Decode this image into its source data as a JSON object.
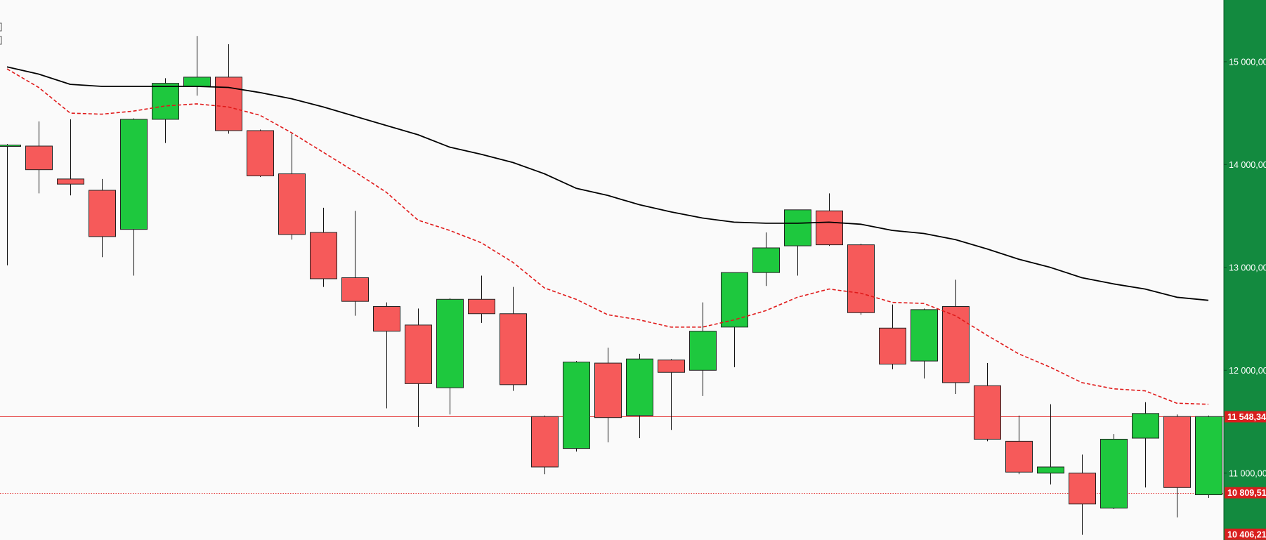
{
  "chart_data": {
    "type": "candlestick",
    "title": "",
    "xlabel": "",
    "ylabel": "",
    "ylim": [
      10350,
      15600
    ],
    "grid": false,
    "legend": "none",
    "colors": {
      "background": "#fafafa",
      "up": "#1ec83e",
      "down": "#f65a5a",
      "candle_outline": "#222222",
      "axis_panel": "#138a3f",
      "level_line": "#e22626",
      "level_tag": "#d91e1e",
      "sma_long": "#000000",
      "sma_short": "#e01a1a",
      "axis_text": "#ffffff"
    },
    "y_ticks": [
      {
        "value": 15000,
        "label": "15 000,00"
      },
      {
        "value": 14000,
        "label": "14 000,00"
      },
      {
        "value": 13000,
        "label": "13 000,00"
      },
      {
        "value": 12000,
        "label": "12 000,00"
      },
      {
        "value": 11000,
        "label": "11 000,00"
      }
    ],
    "price_tags": [
      {
        "value": 11548.34,
        "label": "11 548,34",
        "line": "solid"
      },
      {
        "value": 10809.51,
        "label": "10 809,51",
        "line": "dotted"
      },
      {
        "value": 10406.21,
        "label": "10 406,21",
        "line": "none"
      }
    ],
    "candles": [
      {
        "o": 14190,
        "h": 14200,
        "l": 13020,
        "c": 14190,
        "x0": true
      },
      {
        "o": 14180,
        "h": 14420,
        "l": 13720,
        "c": 13950
      },
      {
        "o": 13860,
        "h": 14440,
        "l": 13700,
        "c": 13810
      },
      {
        "o": 13750,
        "h": 13860,
        "l": 13100,
        "c": 13300
      },
      {
        "o": 13370,
        "h": 14450,
        "l": 12920,
        "c": 14440
      },
      {
        "o": 14440,
        "h": 14840,
        "l": 14210,
        "c": 14790
      },
      {
        "o": 14760,
        "h": 15250,
        "l": 14670,
        "c": 14850
      },
      {
        "o": 14850,
        "h": 15170,
        "l": 14300,
        "c": 14330
      },
      {
        "o": 14330,
        "h": 14340,
        "l": 13880,
        "c": 13890
      },
      {
        "o": 13910,
        "h": 14300,
        "l": 13270,
        "c": 13320
      },
      {
        "o": 13340,
        "h": 13580,
        "l": 12810,
        "c": 12890
      },
      {
        "o": 12900,
        "h": 13550,
        "l": 12530,
        "c": 12670
      },
      {
        "o": 12620,
        "h": 12660,
        "l": 11630,
        "c": 12380
      },
      {
        "o": 12440,
        "h": 12600,
        "l": 11450,
        "c": 11870
      },
      {
        "o": 11830,
        "h": 12700,
        "l": 11570,
        "c": 12690
      },
      {
        "o": 12690,
        "h": 12920,
        "l": 12460,
        "c": 12550
      },
      {
        "o": 12550,
        "h": 12810,
        "l": 11800,
        "c": 11860
      },
      {
        "o": 11550,
        "h": 11560,
        "l": 10990,
        "c": 11060
      },
      {
        "o": 11240,
        "h": 12090,
        "l": 11210,
        "c": 12080
      },
      {
        "o": 12070,
        "h": 12220,
        "l": 11300,
        "c": 11540
      },
      {
        "o": 11560,
        "h": 12160,
        "l": 11340,
        "c": 12110
      },
      {
        "o": 12100,
        "h": 12110,
        "l": 11420,
        "c": 11980
      },
      {
        "o": 12000,
        "h": 12660,
        "l": 11750,
        "c": 12380
      },
      {
        "o": 12420,
        "h": 12950,
        "l": 12030,
        "c": 12950
      },
      {
        "o": 12950,
        "h": 13340,
        "l": 12820,
        "c": 13190
      },
      {
        "o": 13210,
        "h": 13560,
        "l": 12920,
        "c": 13560
      },
      {
        "o": 13550,
        "h": 13720,
        "l": 13210,
        "c": 13220
      },
      {
        "o": 13220,
        "h": 13230,
        "l": 12540,
        "c": 12560
      },
      {
        "o": 12410,
        "h": 12640,
        "l": 12010,
        "c": 12060
      },
      {
        "o": 12090,
        "h": 12600,
        "l": 11920,
        "c": 12590
      },
      {
        "o": 12620,
        "h": 12880,
        "l": 11770,
        "c": 11880
      },
      {
        "o": 11850,
        "h": 12070,
        "l": 11310,
        "c": 11330
      },
      {
        "o": 11310,
        "h": 11560,
        "l": 10990,
        "c": 11010
      },
      {
        "o": 11000,
        "h": 11670,
        "l": 10890,
        "c": 11060
      },
      {
        "o": 11000,
        "h": 11180,
        "l": 10400,
        "c": 10700
      },
      {
        "o": 10660,
        "h": 11380,
        "l": 10650,
        "c": 11330
      },
      {
        "o": 11340,
        "h": 11690,
        "l": 10860,
        "c": 11580
      },
      {
        "o": 11550,
        "h": 11570,
        "l": 10570,
        "c": 10860
      },
      {
        "o": 10790,
        "h": 11560,
        "l": 10760,
        "c": 11550
      }
    ],
    "series": [
      {
        "style": "solid",
        "values": [
          14950,
          14880,
          14780,
          14760,
          14760,
          14760,
          14760,
          14750,
          14700,
          14640,
          14560,
          14470,
          14380,
          14290,
          14170,
          14100,
          14020,
          13910,
          13770,
          13700,
          13610,
          13540,
          13480,
          13440,
          13430,
          13430,
          13440,
          13420,
          13360,
          13330,
          13270,
          13180,
          13080,
          13000,
          12900,
          12840,
          12790,
          12710,
          12680
        ]
      },
      {
        "style": "dashed",
        "values": [
          14930,
          14750,
          14500,
          14490,
          14520,
          14570,
          14590,
          14560,
          14480,
          14310,
          14120,
          13930,
          13730,
          13460,
          13360,
          13240,
          13050,
          12800,
          12690,
          12540,
          12490,
          12420,
          12420,
          12490,
          12580,
          12710,
          12790,
          12750,
          12660,
          12650,
          12530,
          12340,
          12160,
          12030,
          11880,
          11820,
          11800,
          11680,
          11670
        ]
      }
    ]
  }
}
